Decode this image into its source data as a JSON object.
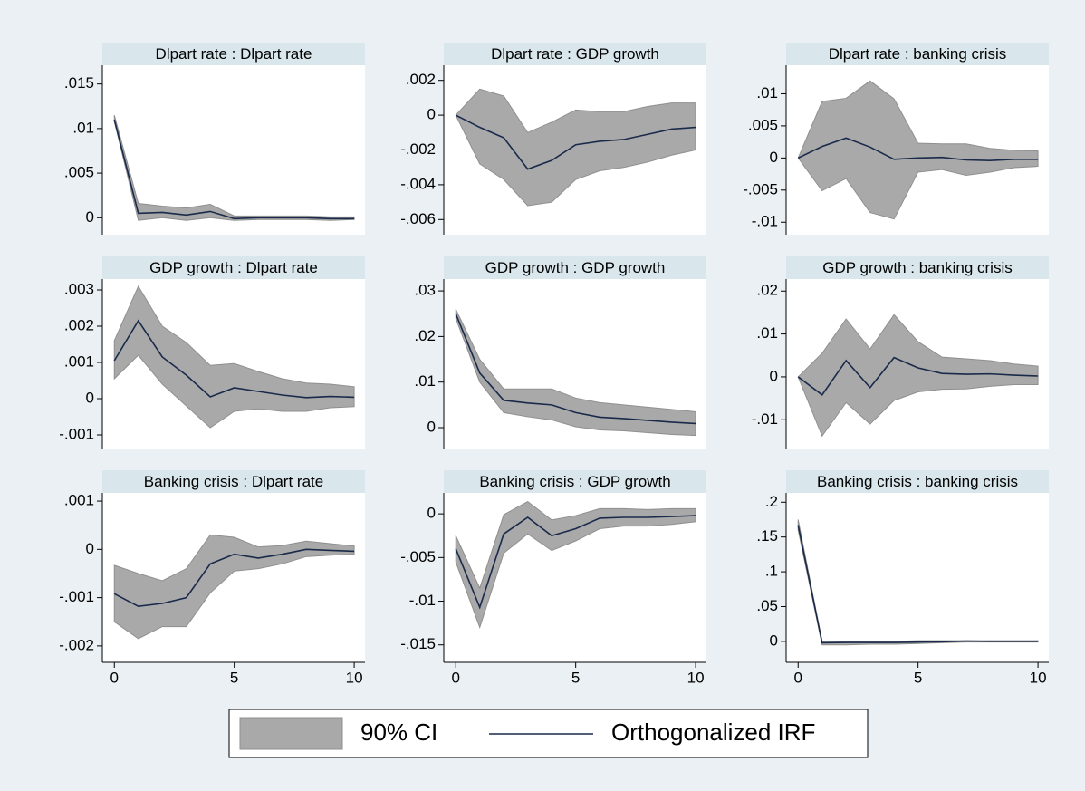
{
  "shared": {
    "x": [
      0,
      1,
      2,
      3,
      4,
      5,
      6,
      7,
      8,
      9,
      10
    ],
    "xlim": [
      -0.5,
      10.45
    ],
    "xticks": [
      0,
      5,
      10
    ]
  },
  "legend": {
    "position": "bottom",
    "entries": [
      {
        "name": "90% CI",
        "color": "#a9a9a9"
      },
      {
        "name": "Orthogonalized IRF",
        "color": "#1a2a4a"
      }
    ]
  },
  "chart_data": [
    {
      "type": "line",
      "title": "Dlpart rate : Dlpart rate",
      "values": [
        0.011,
        0.0005,
        0.0006,
        0.0003,
        0.0007,
        -0.0001,
        0,
        0,
        0,
        -0.0001,
        -0.0001
      ],
      "lower": [
        0.0108,
        -0.0003,
        0,
        -0.0003,
        0,
        -0.0003,
        -0.0002,
        -0.0002,
        -0.0002,
        -0.0003,
        -0.0002
      ],
      "upper": [
        0.0115,
        0.0016,
        0.0013,
        0.0011,
        0.0015,
        0.0002,
        0.0002,
        0.0002,
        0.0002,
        0.0001,
        0.0001
      ],
      "ylim": [
        -0.0019,
        0.0171
      ],
      "yticks": [
        0,
        {
          "value": 0.005,
          "label": ".005"
        },
        {
          "value": 0.01,
          "label": ".01"
        },
        {
          "value": 0.015,
          "label": ".015"
        }
      ]
    },
    {
      "type": "line",
      "title": "Dlpart rate : GDP growth",
      "values": [
        0,
        -0.0007,
        -0.0013,
        -0.0031,
        -0.0026,
        -0.0017,
        -0.0015,
        -0.0014,
        -0.0011,
        -0.0008,
        -0.0007
      ],
      "lower": [
        0,
        -0.0028,
        -0.0037,
        -0.0052,
        -0.005,
        -0.0037,
        -0.0032,
        -0.003,
        -0.0027,
        -0.0023,
        -0.002
      ],
      "upper": [
        0,
        0.0015,
        0.0011,
        -0.001,
        -0.0004,
        0.0003,
        0.0002,
        0.0002,
        0.0005,
        0.0007,
        0.0007
      ],
      "ylim": [
        -0.00687,
        0.00287
      ],
      "yticks": [
        {
          "value": -0.006,
          "label": "-.006"
        },
        {
          "value": -0.004,
          "label": "-.004"
        },
        {
          "value": -0.002,
          "label": "-.002"
        },
        0,
        {
          "value": 0.002,
          "label": ".002"
        }
      ]
    },
    {
      "type": "line",
      "title": "Dlpart rate : banking crisis",
      "values": [
        0,
        0.0018,
        0.0031,
        0.0017,
        -0.0002,
        0,
        0.0001,
        -0.0003,
        -0.0004,
        -0.0002,
        -0.0002
      ],
      "lower": [
        0,
        -0.0051,
        -0.0032,
        -0.0085,
        -0.0095,
        -0.0022,
        -0.0018,
        -0.0027,
        -0.0022,
        -0.0015,
        -0.0013
      ],
      "upper": [
        0,
        0.0088,
        0.0093,
        0.012,
        0.0092,
        0.0023,
        0.0022,
        0.0022,
        0.0015,
        0.0012,
        0.0011
      ],
      "ylim": [
        -0.01194,
        0.01444
      ],
      "yticks": [
        {
          "value": -0.01,
          "label": "-.01"
        },
        {
          "value": -0.005,
          "label": "-.005"
        },
        0,
        {
          "value": 0.005,
          "label": ".005"
        },
        {
          "value": 0.01,
          "label": ".01"
        }
      ]
    },
    {
      "type": "line",
      "title": "GDP growth : Dlpart rate",
      "values": [
        0.00105,
        0.00215,
        0.00115,
        0.00065,
        5e-05,
        0.0003,
        0.0002,
        0.0001,
        3e-05,
        6e-05,
        4e-05
      ],
      "lower": [
        0.00055,
        0.0012,
        0.0004,
        -0.0002,
        -0.0008,
        -0.00035,
        -0.00028,
        -0.00035,
        -0.00035,
        -0.00025,
        -0.00022
      ],
      "upper": [
        0.0016,
        0.0031,
        0.002,
        0.00155,
        0.00092,
        0.00097,
        0.00075,
        0.00055,
        0.00043,
        0.0004,
        0.00033
      ],
      "ylim": [
        -0.001375,
        0.0033
      ],
      "yticks": [
        {
          "value": -0.001,
          "label": "-.001"
        },
        0,
        {
          "value": 0.001,
          "label": ".001"
        },
        {
          "value": 0.002,
          "label": ".002"
        },
        {
          "value": 0.003,
          "label": ".003"
        }
      ]
    },
    {
      "type": "line",
      "title": "GDP growth : GDP growth",
      "values": [
        0.025,
        0.012,
        0.006,
        0.0054,
        0.005,
        0.0033,
        0.0023,
        0.002,
        0.0016,
        0.0012,
        0.0009
      ],
      "lower": [
        0.024,
        0.01,
        0.0033,
        0.0024,
        0.0017,
        0.0002,
        -0.0005,
        -0.0007,
        -0.0011,
        -0.0015,
        -0.0017
      ],
      "upper": [
        0.026,
        0.015,
        0.0085,
        0.0085,
        0.0085,
        0.0065,
        0.0055,
        0.005,
        0.0045,
        0.004,
        0.0035
      ],
      "ylim": [
        -0.00457,
        0.0326
      ],
      "yticks": [
        0,
        {
          "value": 0.01,
          "label": ".01"
        },
        {
          "value": 0.02,
          "label": ".02"
        },
        {
          "value": 0.03,
          "label": ".03"
        }
      ]
    },
    {
      "type": "line",
      "title": "GDP growth : banking crisis",
      "values": [
        0,
        -0.0042,
        0.0038,
        -0.0025,
        0.0045,
        0.0021,
        0.0008,
        0.0006,
        0.0007,
        0.0004,
        0.0002
      ],
      "lower": [
        0,
        -0.0138,
        -0.006,
        -0.011,
        -0.0055,
        -0.0035,
        -0.0029,
        -0.0028,
        -0.0022,
        -0.0018,
        -0.0018
      ],
      "upper": [
        0,
        0.0055,
        0.0135,
        0.0065,
        0.0145,
        0.0082,
        0.0046,
        0.0042,
        0.0038,
        0.003,
        0.0025
      ],
      "ylim": [
        -0.0167,
        0.0228
      ],
      "yticks": [
        {
          "value": -0.01,
          "label": "-.01"
        },
        0,
        {
          "value": 0.01,
          "label": ".01"
        },
        {
          "value": 0.02,
          "label": ".02"
        }
      ]
    },
    {
      "type": "line",
      "title": "Banking crisis : Dlpart rate",
      "values": [
        -0.00092,
        -0.00118,
        -0.00112,
        -0.001,
        -0.0003,
        -0.0001,
        -0.00018,
        -0.0001,
        0,
        -2e-05,
        -4e-05
      ],
      "lower": [
        -0.0015,
        -0.00185,
        -0.0016,
        -0.0016,
        -0.0009,
        -0.00045,
        -0.0004,
        -0.0003,
        -0.00015,
        -0.00012,
        -0.0001
      ],
      "upper": [
        -0.00033,
        -0.0005,
        -0.00065,
        -0.0004,
        0.0003,
        0.00025,
        5e-05,
        8e-05,
        0.00017,
        0.00012,
        7e-05
      ],
      "ylim": [
        -0.00234,
        0.00117
      ],
      "yticks": [
        {
          "value": -0.002,
          "label": "-.002"
        },
        {
          "value": -0.001,
          "label": "-.001"
        },
        0,
        {
          "value": 0.001,
          "label": ".001"
        }
      ]
    },
    {
      "type": "line",
      "title": "Banking crisis : GDP growth",
      "values": [
        -0.004,
        -0.0107,
        -0.0023,
        -0.0004,
        -0.0025,
        -0.0017,
        -0.0005,
        -0.0004,
        -0.0004,
        -0.0003,
        -0.0002
      ],
      "lower": [
        -0.0055,
        -0.013,
        -0.0045,
        -0.0023,
        -0.0042,
        -0.0031,
        -0.0017,
        -0.0014,
        -0.0014,
        -0.0012,
        -0.0009
      ],
      "upper": [
        -0.0025,
        -0.0085,
        -0.0001,
        0.0014,
        -0.0007,
        -0.0002,
        0.0006,
        0.0006,
        0.0005,
        0.0006,
        0.0006
      ],
      "ylim": [
        -0.017,
        0.0024
      ],
      "yticks": [
        {
          "value": -0.015,
          "label": "-.015"
        },
        {
          "value": -0.01,
          "label": "-.01"
        },
        {
          "value": -0.005,
          "label": "-.005"
        },
        0
      ]
    },
    {
      "type": "line",
      "title": "Banking crisis : banking crisis",
      "values": [
        0.167,
        -0.002,
        -0.0015,
        -0.0015,
        -0.0015,
        -0.001,
        -0.0005,
        0.0005,
        0,
        0,
        0
      ],
      "lower": [
        0.16,
        -0.005,
        -0.005,
        -0.004,
        -0.004,
        -0.003,
        -0.002,
        -0.001,
        -0.001,
        -0.001,
        -0.001
      ],
      "upper": [
        0.175,
        0,
        0,
        0,
        0,
        0.001,
        0.001,
        0.001,
        0.001,
        0.001,
        0.001
      ],
      "ylim": [
        -0.0301,
        0.2134
      ],
      "yticks": [
        0,
        {
          "value": 0.05,
          "label": ".05"
        },
        {
          "value": 0.1,
          "label": ".1"
        },
        {
          "value": 0.15,
          "label": ".15"
        },
        {
          "value": 0.2,
          "label": ".2"
        }
      ]
    }
  ]
}
